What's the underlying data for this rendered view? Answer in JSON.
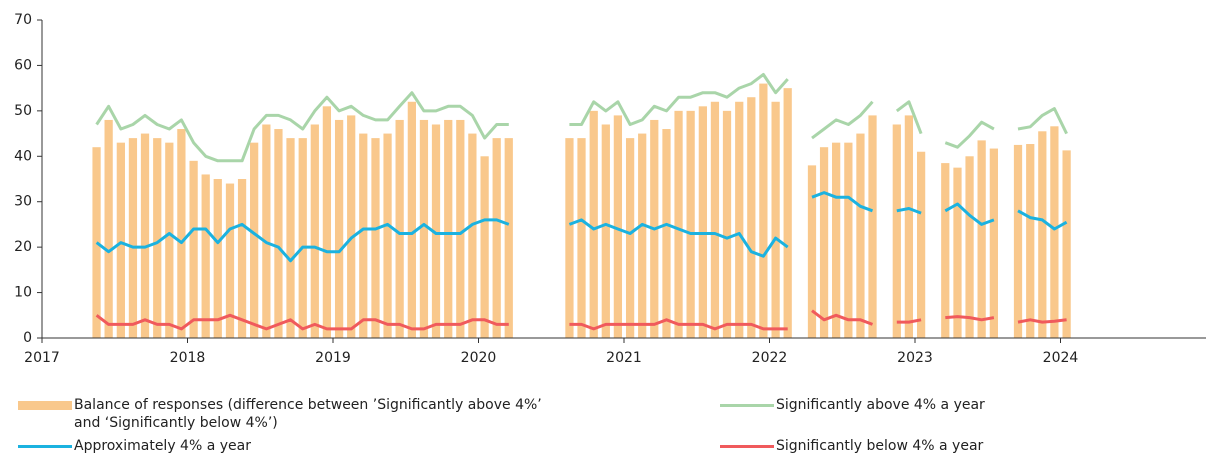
{
  "chart_data": {
    "type": "bar",
    "xlim": [
      2017,
      2025
    ],
    "xticks": [
      2017,
      2018,
      2019,
      2020,
      2021,
      2022,
      2023,
      2024
    ],
    "ylim": [
      0,
      70
    ],
    "yticks": [
      0,
      10,
      20,
      30,
      40,
      50,
      60,
      70
    ],
    "grid": false,
    "x": [
      2017.375,
      2017.458,
      2017.542,
      2017.625,
      2017.708,
      2017.792,
      2017.875,
      2017.958,
      2018.042,
      2018.125,
      2018.208,
      2018.292,
      2018.375,
      2018.458,
      2018.542,
      2018.625,
      2018.708,
      2018.792,
      2018.875,
      2018.958,
      2019.042,
      2019.125,
      2019.208,
      2019.292,
      2019.375,
      2019.458,
      2019.542,
      2019.625,
      2019.708,
      2019.792,
      2019.875,
      2019.958,
      2020.042,
      2020.125,
      2020.208,
      2020.292,
      2020.625,
      2020.708,
      2020.792,
      2020.875,
      2020.958,
      2021.042,
      2021.125,
      2021.208,
      2021.292,
      2021.375,
      2021.458,
      2021.542,
      2021.625,
      2021.708,
      2021.792,
      2021.875,
      2021.958,
      2022.042,
      2022.125,
      2022.208,
      2022.292,
      2022.375,
      2022.458,
      2022.542,
      2022.625,
      2022.708,
      2022.792,
      2022.875,
      2022.958,
      2023.042,
      2023.125,
      2023.208,
      2023.292,
      2023.375,
      2023.458,
      2023.542,
      2023.625,
      2023.708,
      2023.792,
      2023.875,
      2023.958,
      2024.042
    ],
    "series": [
      {
        "name": "Balance of responses (difference between ’Significantly above 4%’ and ‘Significantly below 4%’)",
        "type": "bar",
        "color": "#f9c88c",
        "values": [
          42,
          48,
          43,
          44,
          45,
          44,
          43,
          46,
          39,
          36,
          35,
          34,
          35,
          43,
          47,
          46,
          44,
          44,
          47,
          51,
          48,
          49,
          45,
          44,
          45,
          48,
          52,
          48,
          47,
          48,
          48,
          45,
          40,
          44,
          44,
          null,
          44,
          44,
          50,
          47,
          49,
          44,
          45,
          48,
          46,
          50,
          50,
          51,
          52,
          50,
          52,
          53,
          56,
          52,
          55,
          null,
          38,
          42,
          43,
          43,
          45,
          49,
          null,
          47,
          49,
          41,
          null,
          38.5,
          37.5,
          40,
          43.5,
          41.7,
          null,
          42.5,
          42.7,
          45.5,
          46.6,
          41.3
        ]
      },
      {
        "name": "Significantly above 4% a year",
        "type": "line",
        "color": "#a9d5a9",
        "values": [
          47,
          51,
          46,
          47,
          49,
          47,
          46,
          48,
          43,
          40,
          39,
          39,
          39,
          46,
          49,
          49,
          48,
          46,
          50,
          53,
          50,
          51,
          49,
          48,
          48,
          51,
          54,
          50,
          50,
          51,
          51,
          49,
          44,
          47,
          47,
          null,
          47,
          47,
          52,
          50,
          52,
          47,
          48,
          51,
          50,
          53,
          53,
          54,
          54,
          53,
          55,
          56,
          58,
          54,
          57,
          null,
          44,
          46,
          48,
          47,
          49,
          52,
          null,
          50,
          52,
          45,
          null,
          43,
          42,
          44.5,
          47.5,
          46,
          null,
          46,
          46.5,
          49,
          50.5,
          45
        ]
      },
      {
        "name": "Approximately 4% a year",
        "type": "line",
        "color": "#1bb2e0",
        "values": [
          21,
          19,
          21,
          20,
          20,
          21,
          23,
          21,
          24,
          24,
          21,
          24,
          25,
          23,
          21,
          20,
          17,
          20,
          20,
          19,
          19,
          22,
          24,
          24,
          25,
          23,
          23,
          25,
          23,
          23,
          23,
          25,
          26,
          26,
          25,
          null,
          25,
          26,
          24,
          25,
          24,
          23,
          25,
          24,
          25,
          24,
          23,
          23,
          23,
          22,
          23,
          19,
          18,
          22,
          20,
          null,
          31,
          32,
          31,
          31,
          29,
          28,
          null,
          28,
          28.5,
          27.5,
          null,
          28,
          29.5,
          27,
          25,
          26,
          null,
          28,
          26.5,
          26,
          24,
          25.5
        ]
      },
      {
        "name": "Significantly below 4% a year",
        "type": "line",
        "color": "#f05a5c",
        "values": [
          5,
          3,
          3,
          3,
          4,
          3,
          3,
          2,
          4,
          4,
          4,
          5,
          4,
          3,
          2,
          3,
          4,
          2,
          3,
          2,
          2,
          2,
          4,
          4,
          3,
          3,
          2,
          2,
          3,
          3,
          3,
          4,
          4,
          3,
          3,
          null,
          3,
          3,
          2,
          3,
          3,
          3,
          3,
          3,
          4,
          3,
          3,
          3,
          2,
          3,
          3,
          3,
          2,
          2,
          2,
          null,
          6,
          4,
          5,
          4,
          4,
          3,
          null,
          3.5,
          3.5,
          4,
          null,
          4.5,
          4.7,
          4.5,
          4,
          4.5,
          null,
          3.5,
          4,
          3.5,
          3.7,
          4
        ]
      }
    ]
  }
}
